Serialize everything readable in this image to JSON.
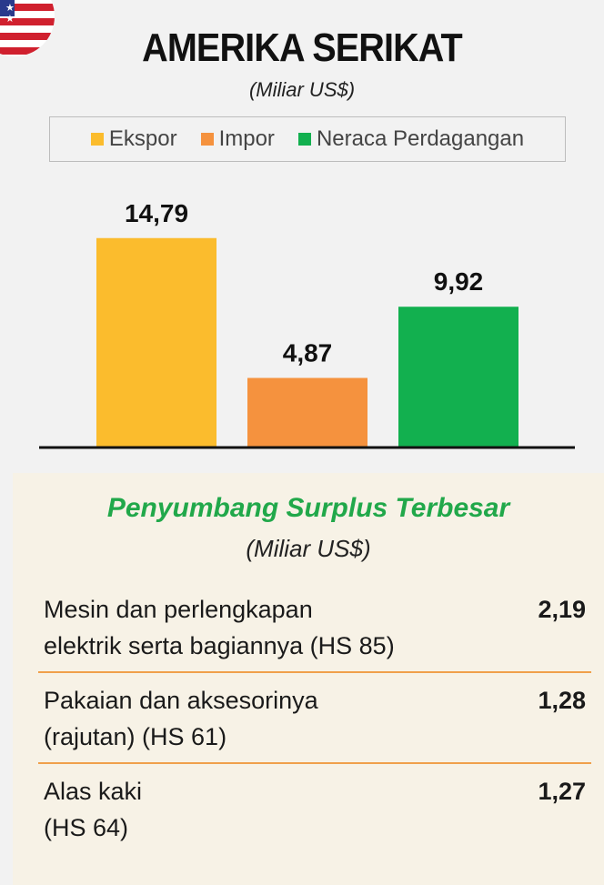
{
  "header": {
    "title": "AMERIKA SERIKAT",
    "subtitle": "(Miliar US$)"
  },
  "legend": {
    "items": [
      {
        "label": "Ekspor",
        "color": "#fbbc2d"
      },
      {
        "label": "Impor",
        "color": "#f5923e"
      },
      {
        "label": "Neraca Perdagangan",
        "color": "#12b04f"
      }
    ]
  },
  "chart_data": {
    "type": "bar",
    "categories": [
      "Ekspor",
      "Impor",
      "Neraca Perdagangan"
    ],
    "values": [
      14.79,
      4.87,
      9.92
    ],
    "value_labels": [
      "14,79",
      "4,87",
      "9,92"
    ],
    "colors": [
      "#fbbc2d",
      "#f5923e",
      "#12b04f"
    ],
    "ylim": [
      0,
      16
    ],
    "grid": false,
    "legend_position": "top"
  },
  "surplus": {
    "title": "Penyumbang Surplus Terbesar",
    "subtitle": "(Miliar US$)",
    "rows": [
      {
        "label_line1": "Mesin dan perlengkapan",
        "label_line2": "elektrik serta bagiannya (HS 85)",
        "value": "2,19"
      },
      {
        "label_line1": "Pakaian dan aksesorinya",
        "label_line2": "(rajutan) (HS 61)",
        "value": "1,28"
      },
      {
        "label_line1": "Alas kaki",
        "label_line2": "(HS 64)",
        "value": "1,27"
      }
    ],
    "divider_color": "#f0a04b"
  }
}
